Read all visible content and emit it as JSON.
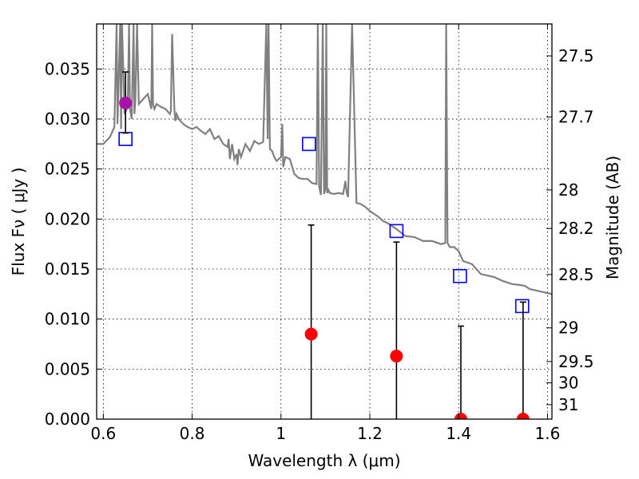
{
  "chart_data": {
    "type": "line",
    "xlabel": "Wavelength  λ (μm)",
    "ylabel": "Flux  Fν  ( μJy )",
    "y2label": "Magnitude (AB)",
    "xlim": [
      0.585,
      1.61
    ],
    "ylim": [
      0.0,
      0.0395
    ],
    "grid": true,
    "x_ticks": [
      "0.6",
      "0.8",
      "1",
      "1.2",
      "1.4",
      "1.6"
    ],
    "x_tick_values": [
      0.6,
      0.8,
      1.0,
      1.2,
      1.4,
      1.6
    ],
    "y_ticks": [
      "0.000",
      "0.005",
      "0.010",
      "0.015",
      "0.020",
      "0.025",
      "0.030",
      "0.035"
    ],
    "y_tick_values": [
      0.0,
      0.005,
      0.01,
      0.015,
      0.02,
      0.025,
      0.03,
      0.035
    ],
    "mag_ticks": [
      "27.5",
      "27.7",
      "28",
      "28.2",
      "28.5",
      "29",
      "29.5",
      "30",
      "31"
    ],
    "mag_tick_values": [
      27.5,
      27.7,
      28.0,
      28.2,
      28.5,
      29.0,
      29.5,
      30.0,
      31.0
    ],
    "colors": {
      "sed": "#808080",
      "model_box": "#0000ff",
      "detection": "#aa10aa",
      "upper_limit": "#ff0000",
      "errorbar": "#000000",
      "grid": "#b0b0b0"
    },
    "series": [
      {
        "kind": "sed-line",
        "x": [
          0.585,
          0.6,
          0.615,
          0.625,
          0.63,
          0.632,
          0.638,
          0.64,
          0.642,
          0.648,
          0.655,
          0.658,
          0.66,
          0.664,
          0.668,
          0.67,
          0.672,
          0.676,
          0.68,
          0.69,
          0.7,
          0.708,
          0.71,
          0.712,
          0.715,
          0.72,
          0.73,
          0.74,
          0.75,
          0.752,
          0.755,
          0.76,
          0.762,
          0.765,
          0.77,
          0.78,
          0.79,
          0.8,
          0.81,
          0.82,
          0.83,
          0.84,
          0.85,
          0.86,
          0.87,
          0.88,
          0.882,
          0.885,
          0.89,
          0.895,
          0.9,
          0.902,
          0.905,
          0.91,
          0.92,
          0.93,
          0.94,
          0.95,
          0.96,
          0.967,
          0.97,
          0.972,
          0.975,
          0.98,
          0.985,
          0.99,
          1.0,
          1.003,
          1.005,
          1.01,
          1.02,
          1.03,
          1.04,
          1.05,
          1.06,
          1.07,
          1.08,
          1.083,
          1.086,
          1.09,
          1.094,
          1.097,
          1.1,
          1.102,
          1.104,
          1.107,
          1.11,
          1.12,
          1.13,
          1.14,
          1.145,
          1.148,
          1.151,
          1.16,
          1.17,
          1.18,
          1.19,
          1.2,
          1.21,
          1.22,
          1.23,
          1.24,
          1.26,
          1.28,
          1.3,
          1.32,
          1.34,
          1.36,
          1.37,
          1.372,
          1.375,
          1.38,
          1.385,
          1.39,
          1.4,
          1.41,
          1.43,
          1.45,
          1.48,
          1.5,
          1.52,
          1.54,
          1.55,
          1.56,
          1.58,
          1.61
        ],
        "y": [
          0.0275,
          0.0275,
          0.0282,
          0.0292,
          0.0395,
          0.0295,
          0.0395,
          0.029,
          0.0395,
          0.0305,
          0.0312,
          0.0395,
          0.031,
          0.03,
          0.0395,
          0.0305,
          0.0318,
          0.0395,
          0.0315,
          0.032,
          0.0325,
          0.031,
          0.0395,
          0.0315,
          0.031,
          0.0315,
          0.0312,
          0.031,
          0.0305,
          0.0308,
          0.0385,
          0.031,
          0.0298,
          0.0305,
          0.03,
          0.0295,
          0.0292,
          0.029,
          0.0292,
          0.0288,
          0.0285,
          0.029,
          0.028,
          0.0283,
          0.0275,
          0.0272,
          0.028,
          0.026,
          0.0275,
          0.026,
          0.0265,
          0.0254,
          0.027,
          0.0262,
          0.0275,
          0.0268,
          0.0278,
          0.0275,
          0.0277,
          0.0395,
          0.028,
          0.0395,
          0.027,
          0.0268,
          0.0262,
          0.0258,
          0.0262,
          0.0295,
          0.0252,
          0.0262,
          0.026,
          0.0245,
          0.0241,
          0.024,
          0.024,
          0.0236,
          0.0235,
          0.0395,
          0.0232,
          0.0224,
          0.0395,
          0.0225,
          0.023,
          0.0395,
          0.0226,
          0.0229,
          0.0226,
          0.0225,
          0.0226,
          0.0225,
          0.0238,
          0.0226,
          0.0222,
          0.0395,
          0.0216,
          0.0215,
          0.0212,
          0.0208,
          0.0205,
          0.0202,
          0.0198,
          0.0196,
          0.019,
          0.0183,
          0.0182,
          0.0178,
          0.0178,
          0.0175,
          0.0176,
          0.0395,
          0.0176,
          0.0172,
          0.0172,
          0.0172,
          0.0168,
          0.0158,
          0.0155,
          0.0145,
          0.0142,
          0.0138,
          0.0135,
          0.0134,
          0.0133,
          0.013,
          0.0128,
          0.0125
        ]
      },
      {
        "kind": "model-boxes",
        "x": [
          0.65,
          1.063,
          1.26,
          1.403,
          1.543
        ],
        "y": [
          0.028,
          0.0275,
          0.0188,
          0.0143,
          0.0113
        ]
      },
      {
        "kind": "detection-points",
        "x": [
          0.65
        ],
        "y": [
          0.0316
        ],
        "yerr_low": [
          0.0286
        ],
        "yerr_high": [
          0.0347
        ]
      },
      {
        "kind": "limit-points",
        "x": [
          1.068,
          1.26,
          1.405,
          1.545
        ],
        "y": [
          0.0085,
          0.0063,
          0.0,
          0.0
        ],
        "yerr_low": [
          0.0,
          0.0,
          0.0,
          0.0
        ],
        "yerr_high": [
          0.0194,
          0.0177,
          0.0093,
          0.0117
        ]
      }
    ]
  }
}
